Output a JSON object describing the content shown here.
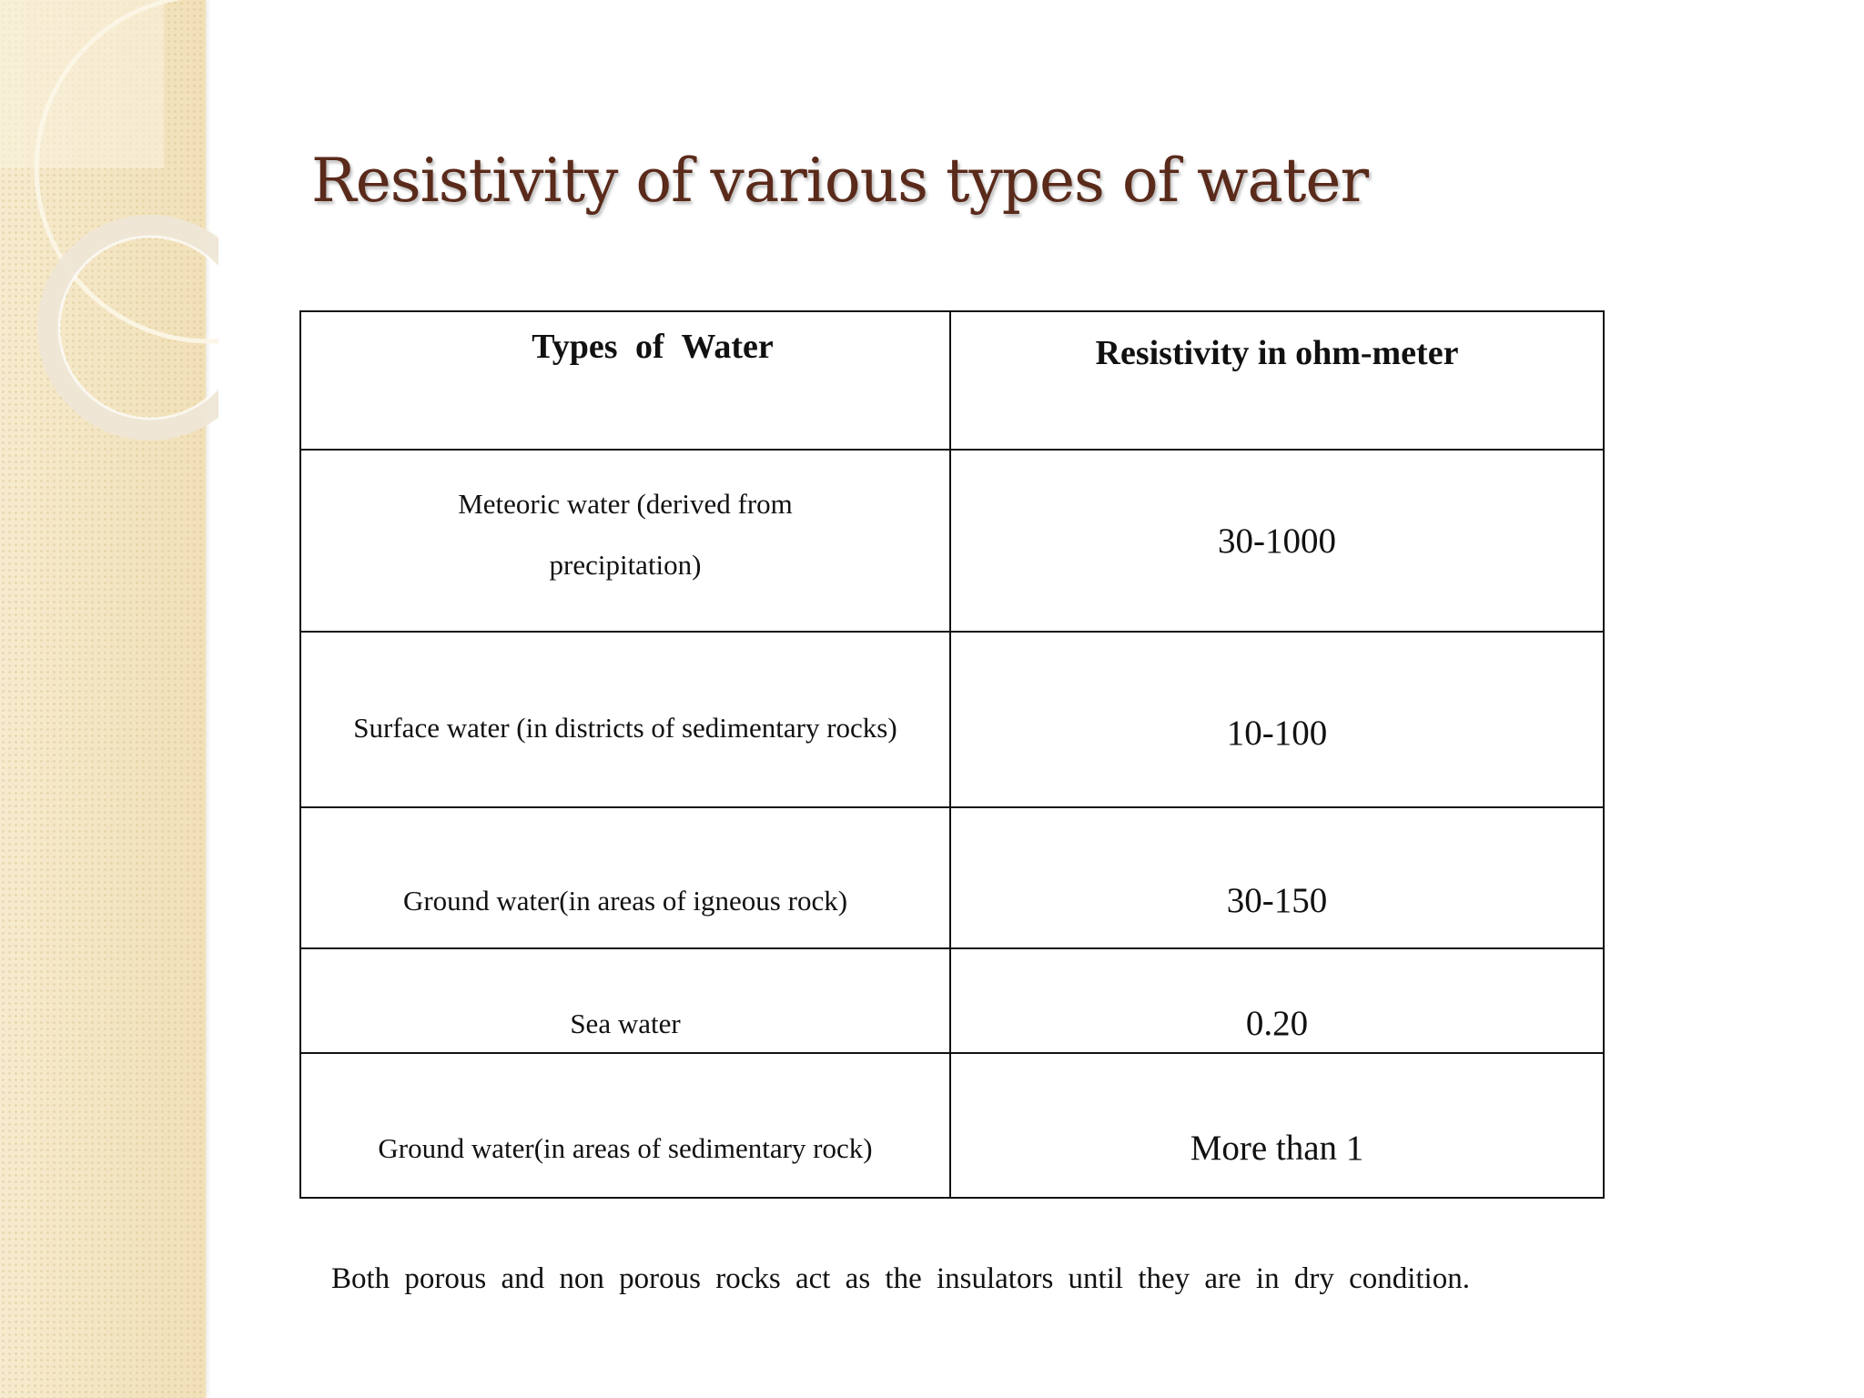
{
  "slide": {
    "title": "Resistivity of various types of water",
    "footnote": "Both  porous  and  non porous  rocks  act  as the insulators  until they are  in  dry  condition."
  },
  "table": {
    "headers": {
      "type": "Types  of  Water",
      "resistivity": "Resistivity in ohm-meter"
    },
    "rows": [
      {
        "type": "Meteoric water (derived from precipitation)",
        "resistivity": "30-1000"
      },
      {
        "type": "Surface water (in districts of sedimentary rocks)",
        "resistivity": "10-100"
      },
      {
        "type": "Ground water(in areas of  igneous rock)",
        "resistivity": "30-150"
      },
      {
        "type": "Sea water",
        "resistivity": "0.20"
      },
      {
        "type": "Ground water(in areas of sedimentary rock)",
        "resistivity": "More than 1"
      }
    ]
  },
  "theme": {
    "title_color": "#5a2a1a",
    "band_color": "#f4e6c4"
  }
}
